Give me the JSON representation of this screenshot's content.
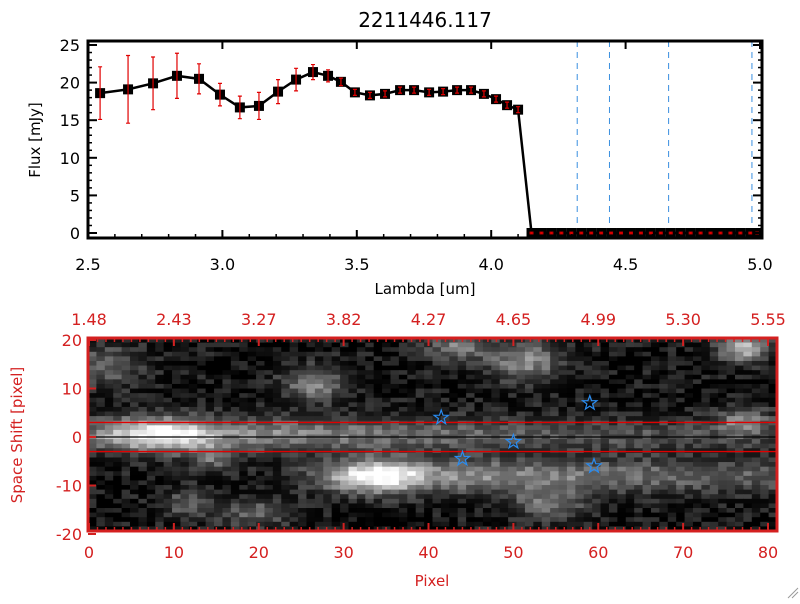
{
  "chart_data": [
    {
      "type": "line",
      "title": "2211446.117",
      "xlabel": "Lambda [um]",
      "ylabel": "Flux [mJy]",
      "xlim": [
        2.5,
        5.0
      ],
      "ylim": [
        0,
        25
      ],
      "xticks": [
        "2.5",
        "3.0",
        "3.5",
        "4.0",
        "4.5",
        "5.0"
      ],
      "xtick_values": [
        2.5,
        3.0,
        3.5,
        4.0,
        4.5,
        5.0
      ],
      "yticks": [
        "0",
        "5",
        "10",
        "15",
        "20",
        "25"
      ],
      "ytick_values": [
        0,
        5,
        10,
        15,
        20,
        25
      ],
      "series": [
        {
          "name": "flux",
          "color": "#000000",
          "error_color": "#e00000",
          "x": [
            2.545,
            2.649,
            2.742,
            2.831,
            2.913,
            2.991,
            3.065,
            3.136,
            3.207,
            3.274,
            3.337,
            3.393,
            3.441,
            3.493,
            3.549,
            3.605,
            3.661,
            3.713,
            3.769,
            3.821,
            3.873,
            3.925,
            3.973,
            4.018,
            4.059,
            4.1,
            4.15,
            4.187,
            4.224,
            4.261,
            4.298,
            4.335,
            4.372,
            4.409,
            4.446,
            4.483,
            4.52,
            4.557,
            4.594,
            4.631,
            4.668,
            4.705,
            4.742,
            4.779,
            4.816,
            4.853,
            4.89,
            4.927,
            4.964,
            4.99
          ],
          "y": [
            18.6,
            19.1,
            19.9,
            20.9,
            20.5,
            18.4,
            16.7,
            16.9,
            18.8,
            20.4,
            21.4,
            20.9,
            20.1,
            18.7,
            18.3,
            18.5,
            19.0,
            19.0,
            18.7,
            18.8,
            19.0,
            19.0,
            18.5,
            17.8,
            17.0,
            16.4,
            0,
            0,
            0,
            0,
            0,
            0,
            0,
            0,
            0,
            0,
            0,
            0,
            0,
            0,
            0,
            0,
            0,
            0,
            0,
            0,
            0,
            0,
            0,
            0
          ],
          "yerr": [
            3.5,
            4.5,
            3.5,
            3.0,
            2.0,
            1.5,
            1.5,
            1.8,
            1.6,
            1.5,
            1.0,
            0.8,
            0.5,
            0.4,
            0.4,
            0.4,
            0.4,
            0.4,
            0.4,
            0.4,
            0.4,
            0.4,
            0.4,
            0.4,
            0.4,
            0.4,
            0.1,
            0.1,
            0.1,
            0.1,
            0.1,
            0.1,
            0.1,
            0.1,
            0.1,
            0.1,
            0.1,
            0.1,
            0.1,
            0.1,
            0.1,
            0.1,
            0.1,
            0.1,
            0.1,
            0.1,
            0.1,
            0.1,
            0.1,
            0.1
          ]
        }
      ],
      "vlines": [
        {
          "x": 4.32,
          "color": "#3a8fe0",
          "style": "dashed"
        },
        {
          "x": 4.44,
          "color": "#3a8fe0",
          "style": "dashed"
        },
        {
          "x": 4.66,
          "color": "#3a8fe0",
          "style": "dashed"
        },
        {
          "x": 4.97,
          "color": "#3a8fe0",
          "style": "dashed"
        }
      ],
      "hlines": [
        {
          "y": 0,
          "color": "#e00000",
          "style": "dashed"
        }
      ]
    },
    {
      "type": "heatmap",
      "xlabel": "Pixel",
      "ylabel": "Space Shift [pixel]",
      "axis_color": "#d42020",
      "xlim": [
        0,
        81
      ],
      "ylim": [
        -21,
        21
      ],
      "xticks": [
        "0",
        "10",
        "20",
        "30",
        "40",
        "50",
        "60",
        "70",
        "80"
      ],
      "xtick_values": [
        0,
        10,
        20,
        30,
        40,
        50,
        60,
        70,
        80
      ],
      "top_xticks": [
        "1.48",
        "2.43",
        "3.27",
        "3.82",
        "4.27",
        "4.65",
        "4.99",
        "5.30",
        "5.55"
      ],
      "yticks": [
        "20",
        "10",
        "0",
        "-10",
        "-20"
      ],
      "ytick_values": [
        20,
        10,
        0,
        -10,
        -20
      ],
      "colormap": "grayscale",
      "hlines": [
        {
          "y": 3,
          "color": "#e00000"
        },
        {
          "y": 0,
          "color": "#000000"
        },
        {
          "y": -3,
          "color": "#e00000"
        }
      ],
      "markers": {
        "symbol": "star",
        "color": "#2a8cf0",
        "points": [
          [
            41.5,
            4
          ],
          [
            44,
            -4.5
          ],
          [
            50,
            -1
          ],
          [
            59,
            7
          ],
          [
            59.5,
            -6
          ]
        ]
      }
    }
  ]
}
